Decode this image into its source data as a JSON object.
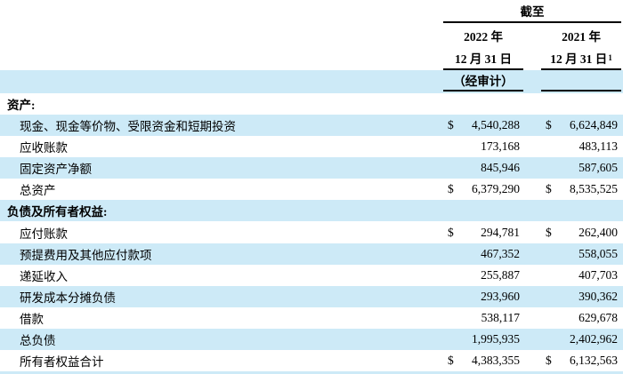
{
  "header": {
    "as_of": "截至",
    "col_2022": {
      "year": "2022 年",
      "date": "12 月 31 日",
      "note": ""
    },
    "col_2021": {
      "year": "2021 年",
      "date": "12 月 31 日",
      "note": "1"
    },
    "audited": "（经审计）"
  },
  "colors": {
    "highlight": "#cdeaf7",
    "rule": "#000000",
    "text": "#000000"
  },
  "rows": [
    {
      "label": "资产:",
      "section": true,
      "indent": false,
      "shade": false,
      "d2022": "",
      "v2022": "",
      "d2021": "",
      "v2021": ""
    },
    {
      "label": "现金、现金等价物、受限资金和短期投资",
      "section": false,
      "indent": true,
      "shade": true,
      "d2022": "$",
      "v2022": "4,540,288",
      "d2021": "$",
      "v2021": "6,624,849"
    },
    {
      "label": "应收账款",
      "section": false,
      "indent": true,
      "shade": false,
      "d2022": "",
      "v2022": "173,168",
      "d2021": "",
      "v2021": "483,113"
    },
    {
      "label": "固定资产净额",
      "section": false,
      "indent": true,
      "shade": true,
      "d2022": "",
      "v2022": "845,946",
      "d2021": "",
      "v2021": "587,605"
    },
    {
      "label": "总资产",
      "section": false,
      "indent": true,
      "shade": false,
      "d2022": "$",
      "v2022": "6,379,290",
      "d2021": "$",
      "v2021": "8,535,525"
    },
    {
      "label": "负债及所有者权益:",
      "section": true,
      "indent": false,
      "shade": true,
      "d2022": "",
      "v2022": "",
      "d2021": "",
      "v2021": ""
    },
    {
      "label": "应付账款",
      "section": false,
      "indent": true,
      "shade": false,
      "d2022": "$",
      "v2022": "294,781",
      "d2021": "$",
      "v2021": "262,400"
    },
    {
      "label": "预提费用及其他应付款项",
      "section": false,
      "indent": true,
      "shade": true,
      "d2022": "",
      "v2022": "467,352",
      "d2021": "",
      "v2021": "558,055"
    },
    {
      "label": "递延收入",
      "section": false,
      "indent": true,
      "shade": false,
      "d2022": "",
      "v2022": "255,887",
      "d2021": "",
      "v2021": "407,703"
    },
    {
      "label": "研发成本分摊负债",
      "section": false,
      "indent": true,
      "shade": true,
      "d2022": "",
      "v2022": "293,960",
      "d2021": "",
      "v2021": "390,362"
    },
    {
      "label": "借款",
      "section": false,
      "indent": true,
      "shade": false,
      "d2022": "",
      "v2022": "538,117",
      "d2021": "",
      "v2021": "629,678"
    },
    {
      "label": "总负债",
      "section": false,
      "indent": true,
      "shade": true,
      "d2022": "",
      "v2022": "1,995,935",
      "d2021": "",
      "v2021": "2,402,962"
    },
    {
      "label": "所有者权益合计",
      "section": false,
      "indent": true,
      "shade": false,
      "d2022": "$",
      "v2022": "4,383,355",
      "d2021": "$",
      "v2021": "6,132,563"
    }
  ]
}
